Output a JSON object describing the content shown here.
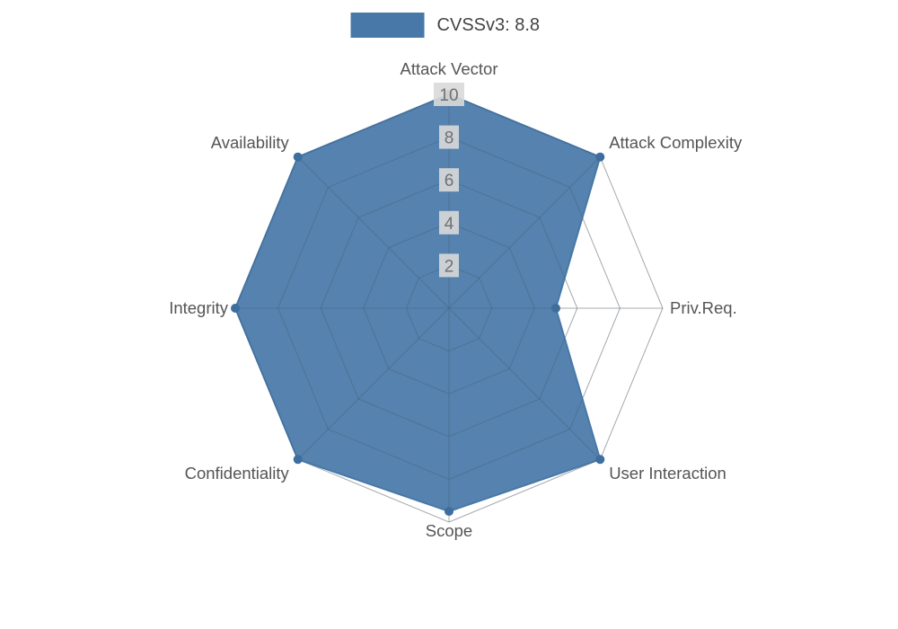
{
  "legend": {
    "label": "CVSSv3: 8.8"
  },
  "chart_data": {
    "type": "radar",
    "title": "CVSSv3: 8.8",
    "categories": [
      "Attack Vector",
      "Attack Complexity",
      "Priv.Req.",
      "User Interaction",
      "Scope",
      "Confidentiality",
      "Integrity",
      "Availability"
    ],
    "series": [
      {
        "name": "CVSSv3: 8.8",
        "values": [
          10,
          10,
          5,
          10,
          9.5,
          10,
          10,
          10
        ]
      }
    ],
    "ticks": [
      2,
      4,
      6,
      8,
      10
    ],
    "rlim": [
      0,
      10
    ],
    "grid": true,
    "legend_position": "top-center",
    "colors": {
      "fill": "#4878a8",
      "dot": "#3d6e9e",
      "grid": "#cccccc",
      "grid_overlay": "#445566",
      "axis_label": "#555555",
      "tick_text": "#707070",
      "tick_bg": "#d9d9d9",
      "legend_text": "#444444"
    }
  }
}
